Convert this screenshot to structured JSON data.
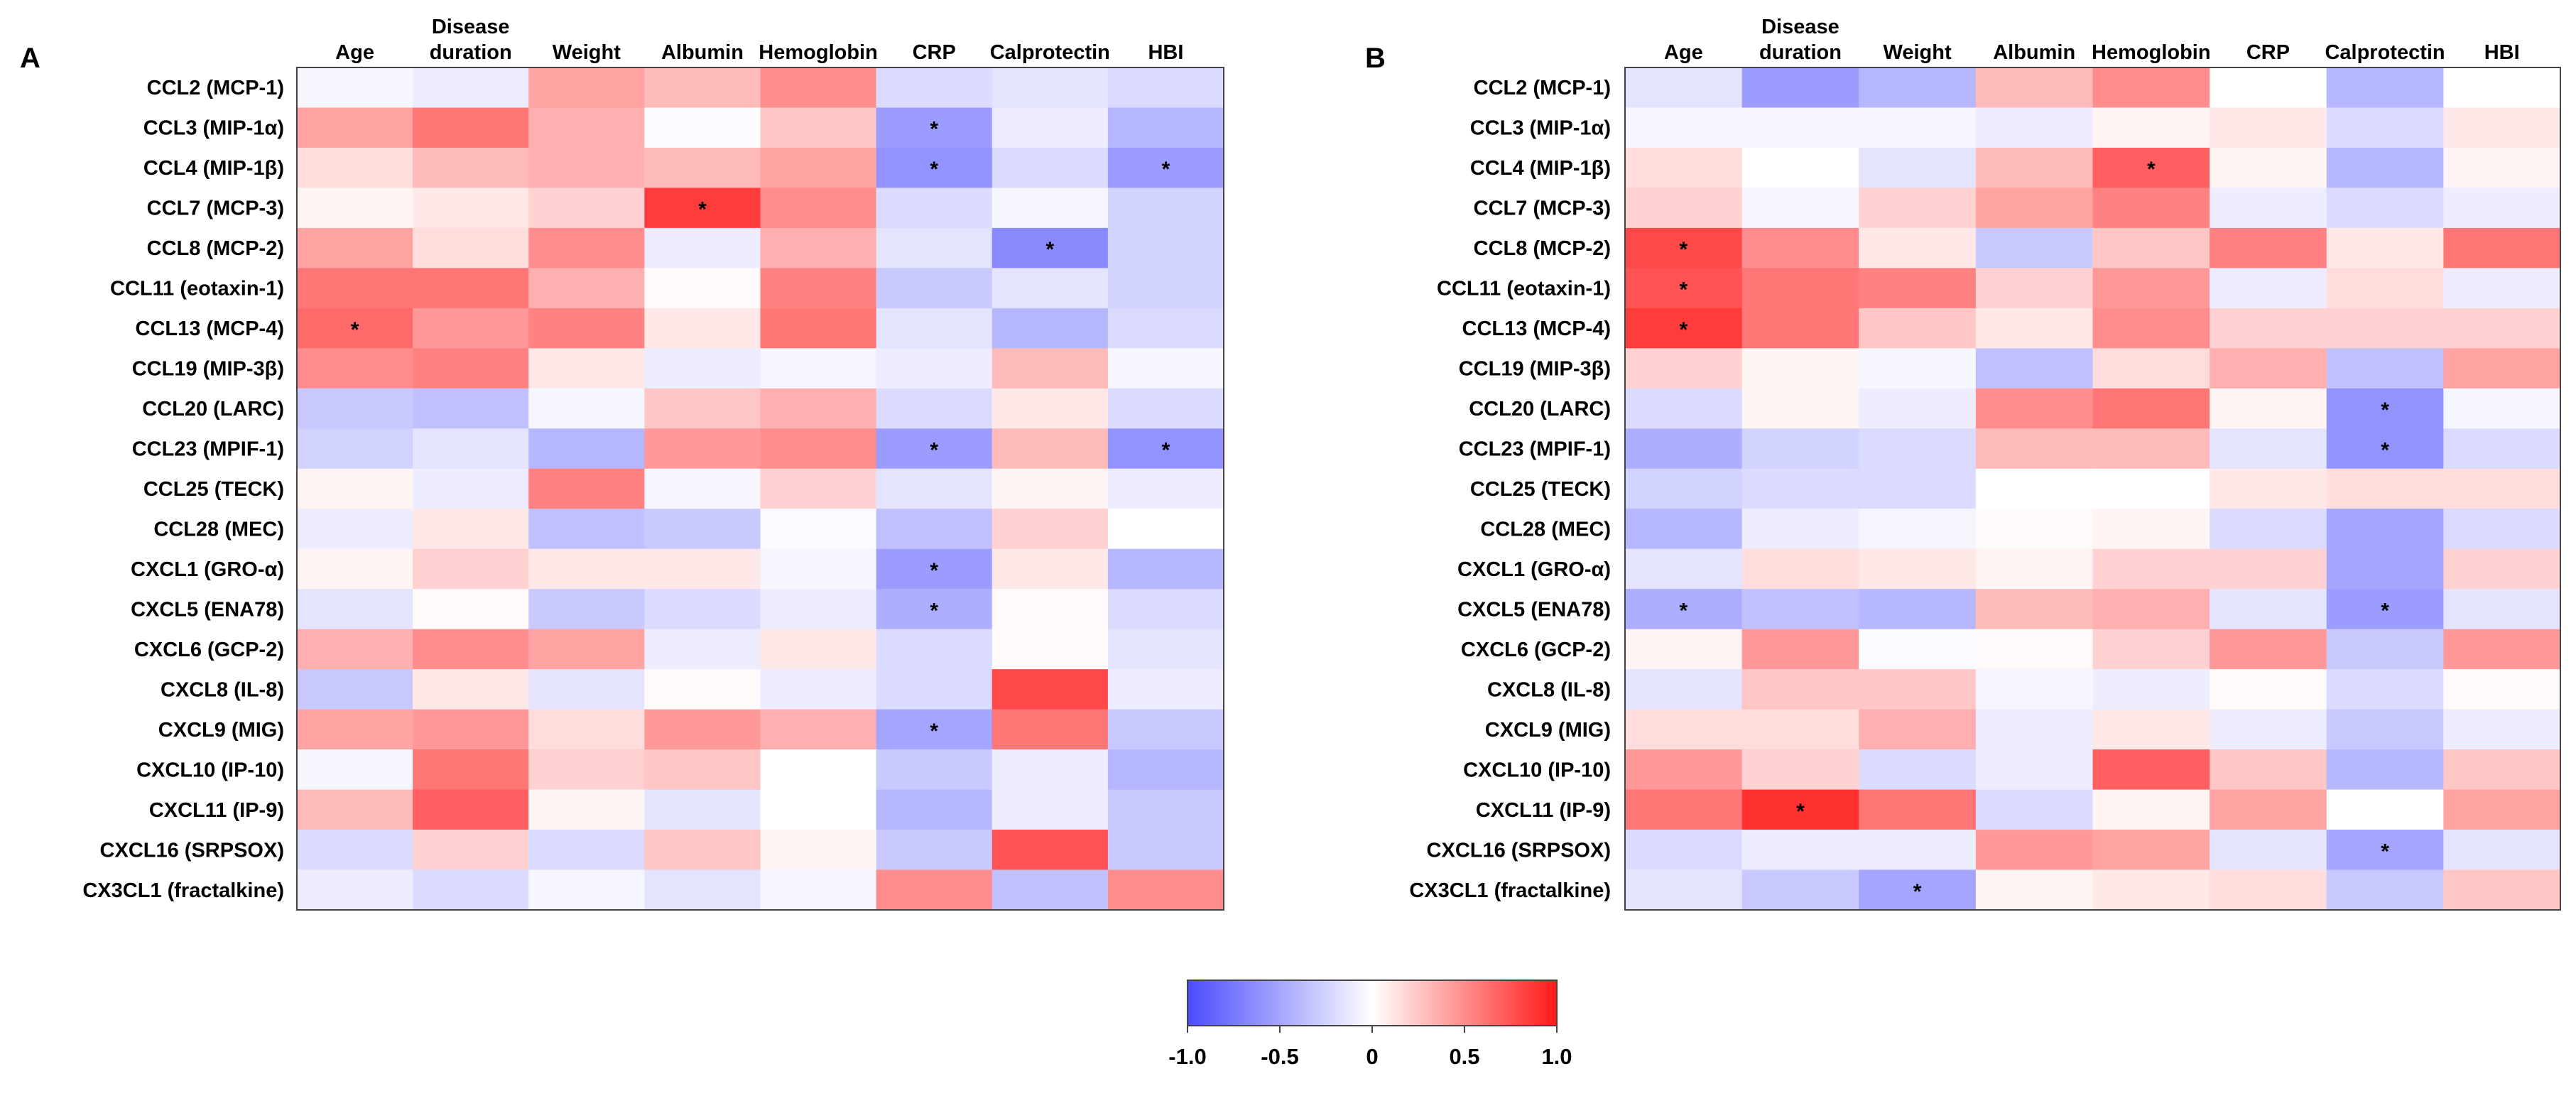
{
  "chart_data": [
    {
      "type": "heatmap",
      "panel": "A",
      "columns": [
        "Age",
        "Disease duration",
        "Weight",
        "Albumin",
        "Hemoglobin",
        "CRP",
        "Calprotectin",
        "HBI"
      ],
      "rows": [
        "CCL2 (MCP-1)",
        "CCL3 (MIP-1α)",
        "CCL4 (MIP-1β)",
        "CCL7 (MCP-3)",
        "CCL8 (MCP-2)",
        "CCL11 (eotaxin-1)",
        "CCL13 (MCP-4)",
        "CCL19 (MIP-3β)",
        "CCL20 (LARC)",
        "CCL23 (MPIF-1)",
        "CCL25 (TECK)",
        "CCL28 (MEC)",
        "CXCL1 (GRO-α)",
        "CXCL5 (ENA78)",
        "CXCL6 (GCP-2)",
        "CXCL8 (IL-8)",
        "CXCL9 (MIG)",
        "CXCL10 (IP-10)",
        "CXCL11 (IP-9)",
        "CXCL16 (SRPSOX)",
        "CX3CL1 (fractalkine)"
      ],
      "values": [
        [
          -0.05,
          -0.1,
          0.4,
          0.3,
          0.5,
          -0.2,
          -0.15,
          -0.2
        ],
        [
          0.4,
          0.6,
          0.35,
          -0.02,
          0.25,
          -0.55,
          -0.1,
          -0.4
        ],
        [
          0.15,
          0.3,
          0.35,
          0.3,
          0.4,
          -0.6,
          -0.2,
          -0.55
        ],
        [
          0.05,
          0.1,
          0.2,
          0.85,
          0.5,
          -0.2,
          -0.05,
          -0.25
        ],
        [
          0.4,
          0.15,
          0.5,
          -0.1,
          0.35,
          -0.15,
          -0.65,
          -0.25
        ],
        [
          0.6,
          0.6,
          0.35,
          0.02,
          0.55,
          -0.3,
          -0.15,
          -0.25
        ],
        [
          0.65,
          0.45,
          0.55,
          0.1,
          0.6,
          -0.15,
          -0.4,
          -0.2
        ],
        [
          0.5,
          0.55,
          0.1,
          -0.1,
          -0.05,
          -0.1,
          0.3,
          -0.05
        ],
        [
          -0.3,
          -0.35,
          -0.05,
          0.25,
          0.35,
          -0.2,
          0.1,
          -0.2
        ],
        [
          -0.25,
          -0.15,
          -0.4,
          0.45,
          0.5,
          -0.55,
          0.3,
          -0.6
        ],
        [
          0.05,
          -0.1,
          0.55,
          -0.05,
          0.2,
          -0.15,
          0.05,
          -0.1
        ],
        [
          -0.1,
          0.1,
          -0.35,
          -0.3,
          -0.02,
          -0.35,
          0.2,
          0.0
        ],
        [
          0.05,
          0.2,
          0.1,
          0.1,
          -0.05,
          -0.55,
          0.1,
          -0.4
        ],
        [
          -0.15,
          0.02,
          -0.3,
          -0.2,
          -0.1,
          -0.45,
          0.02,
          -0.2
        ],
        [
          0.35,
          0.5,
          0.4,
          -0.1,
          0.1,
          -0.2,
          0.02,
          -0.15
        ],
        [
          -0.3,
          0.1,
          -0.15,
          0.02,
          -0.1,
          -0.2,
          0.8,
          -0.1
        ],
        [
          0.4,
          0.45,
          0.15,
          0.45,
          0.35,
          -0.5,
          0.6,
          -0.3
        ],
        [
          -0.05,
          0.6,
          0.2,
          0.25,
          0.0,
          -0.3,
          -0.1,
          -0.4
        ],
        [
          0.3,
          0.7,
          0.05,
          -0.15,
          0.0,
          -0.4,
          -0.1,
          -0.3
        ],
        [
          -0.2,
          0.2,
          -0.2,
          0.25,
          0.05,
          -0.3,
          0.75,
          -0.3
        ],
        [
          -0.1,
          -0.2,
          -0.05,
          -0.15,
          -0.05,
          0.5,
          -0.35,
          0.5
        ]
      ],
      "significant": [
        [
          1,
          5
        ],
        [
          2,
          5
        ],
        [
          2,
          7
        ],
        [
          3,
          3
        ],
        [
          4,
          6
        ],
        [
          6,
          0
        ],
        [
          9,
          5
        ],
        [
          9,
          7
        ],
        [
          12,
          5
        ],
        [
          13,
          5
        ],
        [
          16,
          5
        ]
      ],
      "significance_marker": "*"
    },
    {
      "type": "heatmap",
      "panel": "B",
      "columns": [
        "Age",
        "Disease duration",
        "Weight",
        "Albumin",
        "Hemoglobin",
        "CRP",
        "Calprotectin",
        "HBI"
      ],
      "rows": [
        "CCL2 (MCP-1)",
        "CCL3 (MIP-1α)",
        "CCL4 (MIP-1β)",
        "CCL7 (MCP-3)",
        "CCL8 (MCP-2)",
        "CCL11 (eotaxin-1)",
        "CCL13 (MCP-4)",
        "CCL19 (MIP-3β)",
        "CCL20 (LARC)",
        "CCL23 (MPIF-1)",
        "CCL25 (TECK)",
        "CCL28 (MEC)",
        "CXCL1 (GRO-α)",
        "CXCL5 (ENA78)",
        "CXCL6 (GCP-2)",
        "CXCL8 (IL-8)",
        "CXCL9 (MIG)",
        "CXCL10 (IP-10)",
        "CXCL11 (IP-9)",
        "CXCL16 (SRPSOX)",
        "CX3CL1 (fractalkine)"
      ],
      "values": [
        [
          -0.15,
          -0.55,
          -0.4,
          0.3,
          0.5,
          0.0,
          -0.4,
          0.0
        ],
        [
          -0.05,
          -0.05,
          -0.05,
          -0.1,
          0.05,
          0.1,
          -0.2,
          0.1
        ],
        [
          0.15,
          0.0,
          -0.15,
          0.3,
          0.7,
          0.05,
          -0.4,
          0.05
        ],
        [
          0.2,
          -0.05,
          0.2,
          0.4,
          0.55,
          -0.1,
          -0.2,
          -0.1
        ],
        [
          0.8,
          0.5,
          0.1,
          -0.3,
          0.25,
          0.55,
          0.1,
          0.6
        ],
        [
          0.75,
          0.6,
          0.55,
          0.2,
          0.45,
          -0.1,
          0.15,
          -0.1
        ],
        [
          0.85,
          0.6,
          0.25,
          0.1,
          0.5,
          0.2,
          0.2,
          0.2
        ],
        [
          0.2,
          0.05,
          -0.05,
          -0.35,
          0.15,
          0.35,
          -0.35,
          0.4
        ],
        [
          -0.2,
          0.05,
          -0.1,
          0.5,
          0.6,
          0.05,
          -0.6,
          -0.05
        ],
        [
          -0.45,
          -0.25,
          -0.2,
          0.3,
          0.3,
          -0.15,
          -0.6,
          -0.2
        ],
        [
          -0.25,
          -0.2,
          -0.2,
          0.0,
          0.0,
          0.1,
          0.15,
          0.15
        ],
        [
          -0.4,
          -0.1,
          -0.05,
          0.02,
          0.05,
          -0.2,
          -0.5,
          -0.2
        ],
        [
          -0.15,
          0.15,
          0.1,
          0.05,
          0.2,
          0.2,
          -0.5,
          0.2
        ],
        [
          -0.45,
          -0.35,
          -0.4,
          0.3,
          0.35,
          -0.15,
          -0.55,
          -0.15
        ],
        [
          0.05,
          0.45,
          -0.02,
          0.02,
          0.2,
          0.45,
          -0.3,
          0.45
        ],
        [
          -0.15,
          0.25,
          0.25,
          -0.05,
          -0.1,
          0.02,
          -0.2,
          0.02
        ],
        [
          0.15,
          0.15,
          0.35,
          -0.1,
          0.1,
          -0.1,
          -0.3,
          -0.1
        ],
        [
          0.45,
          0.2,
          -0.2,
          -0.1,
          0.7,
          0.25,
          -0.4,
          0.25
        ],
        [
          0.6,
          0.9,
          0.6,
          -0.2,
          0.05,
          0.4,
          0.0,
          0.4
        ],
        [
          -0.2,
          -0.1,
          -0.1,
          0.45,
          0.4,
          -0.15,
          -0.5,
          -0.15
        ],
        [
          -0.15,
          -0.3,
          -0.5,
          0.05,
          0.1,
          0.15,
          -0.3,
          0.25
        ]
      ],
      "significant": [
        [
          2,
          4
        ],
        [
          4,
          0
        ],
        [
          5,
          0
        ],
        [
          6,
          0
        ],
        [
          8,
          6
        ],
        [
          9,
          6
        ],
        [
          13,
          0
        ],
        [
          13,
          6
        ],
        [
          18,
          1
        ],
        [
          19,
          6
        ],
        [
          20,
          2
        ]
      ],
      "significance_marker": "*"
    }
  ],
  "colorbar": {
    "range": [
      -1.0,
      1.0
    ],
    "ticks": [
      -1.0,
      -0.5,
      0,
      0.5,
      1.0
    ],
    "tick_labels": [
      "-1.0",
      "-0.5",
      "0",
      "0.5",
      "1.0"
    ],
    "colors": {
      "low": "#4b4bff",
      "mid": "#ffffff",
      "high": "#ff1a1a"
    }
  }
}
